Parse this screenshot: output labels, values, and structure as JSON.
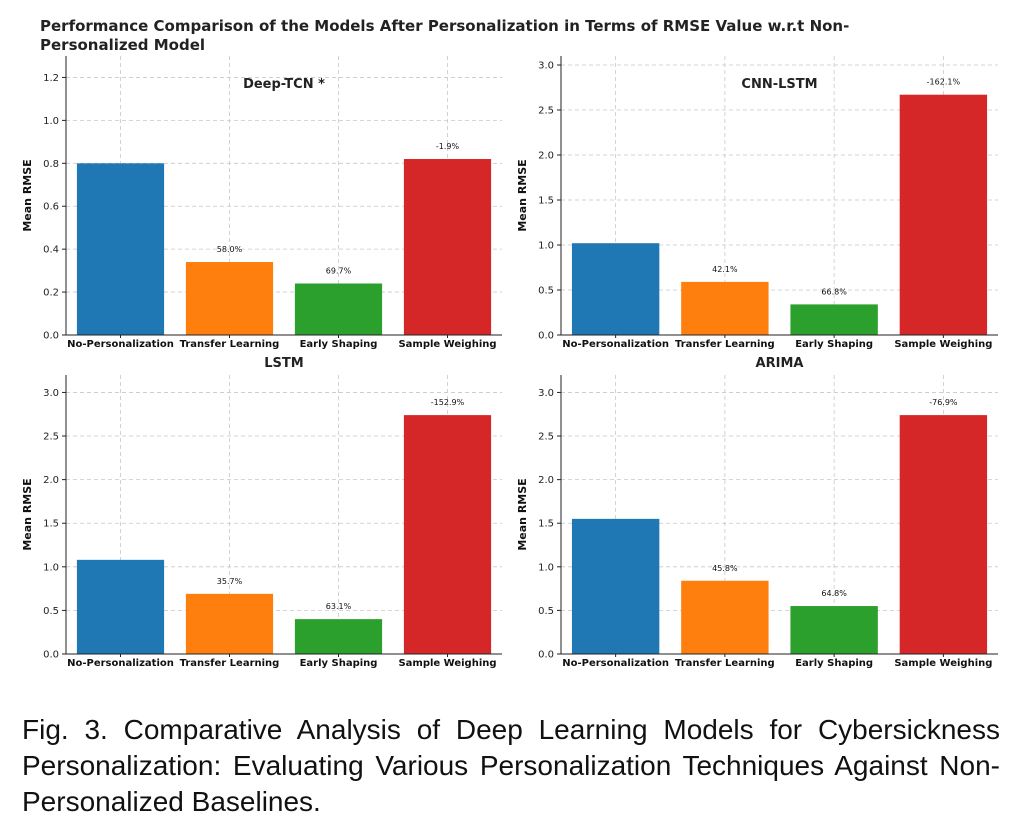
{
  "figure": {
    "suptitle_lines": [
      "Performance Comparison of the Models After Personalization in Terms of RMSE Value w.r.t Non-",
      "Personalized Model"
    ],
    "caption": "Fig. 3.  Comparative Analysis of Deep Learning Models for Cybersickness Personalization:  Evaluating Various Personalization Techniques Against Non-Personalized Baselines."
  },
  "colors": [
    "#1f77b4",
    "#ff7f0e",
    "#2ca02c",
    "#d62728"
  ],
  "chart_data": [
    {
      "type": "bar",
      "title": "Deep-TCN *",
      "ylabel": "Mean RMSE",
      "categories": [
        "No-Personalization",
        "Transfer Learning",
        "Early Shaping",
        "Sample Weighing"
      ],
      "values": [
        0.8,
        0.34,
        0.24,
        0.82
      ],
      "data_labels": [
        "",
        "58.0%",
        "69.7%",
        "-1.9%"
      ],
      "ylim": [
        0,
        1.3
      ],
      "yticks": [
        0.0,
        0.2,
        0.4,
        0.6,
        0.8,
        1.0,
        1.2
      ],
      "ytick_labels": [
        "0.0",
        "0.2",
        "0.4",
        "0.6",
        "0.8",
        "1.0",
        "1.2"
      ],
      "grid": true
    },
    {
      "type": "bar",
      "title": "CNN-LSTM",
      "ylabel": "Mean RMSE",
      "categories": [
        "No-Personalization",
        "Transfer Learning",
        "Early Shaping",
        "Sample Weighing"
      ],
      "values": [
        1.02,
        0.59,
        0.34,
        2.67
      ],
      "data_labels": [
        "",
        "42.1%",
        "66.8%",
        "-162.1%"
      ],
      "ylim": [
        0,
        3.1
      ],
      "yticks": [
        0.0,
        0.5,
        1.0,
        1.5,
        2.0,
        2.5,
        3.0
      ],
      "ytick_labels": [
        "0.0",
        "0.5",
        "1.0",
        "1.5",
        "2.0",
        "2.5",
        "3.0"
      ],
      "grid": true
    },
    {
      "type": "bar",
      "title": "LSTM",
      "ylabel": "Mean RMSE",
      "categories": [
        "No-Personalization",
        "Transfer Learning",
        "Early Shaping",
        "Sample Weighing"
      ],
      "values": [
        1.08,
        0.69,
        0.4,
        2.74
      ],
      "data_labels": [
        "",
        "35.7%",
        "63.1%",
        "-152.9%"
      ],
      "ylim": [
        0,
        3.2
      ],
      "yticks": [
        0.0,
        0.5,
        1.0,
        1.5,
        2.0,
        2.5,
        3.0
      ],
      "ytick_labels": [
        "0.0",
        "0.5",
        "1.0",
        "1.5",
        "2.0",
        "2.5",
        "3.0"
      ],
      "grid": true
    },
    {
      "type": "bar",
      "title": "ARIMA",
      "ylabel": "Mean RMSE",
      "categories": [
        "No-Personalization",
        "Transfer Learning",
        "Early Shaping",
        "Sample Weighing"
      ],
      "values": [
        1.55,
        0.84,
        0.55,
        2.74
      ],
      "data_labels": [
        "",
        "45.8%",
        "64.8%",
        "-76.9%"
      ],
      "ylim": [
        0,
        3.2
      ],
      "yticks": [
        0.0,
        0.5,
        1.0,
        1.5,
        2.0,
        2.5,
        3.0
      ],
      "ytick_labels": [
        "0.0",
        "0.5",
        "1.0",
        "1.5",
        "2.0",
        "2.5",
        "3.0"
      ],
      "grid": true
    }
  ]
}
